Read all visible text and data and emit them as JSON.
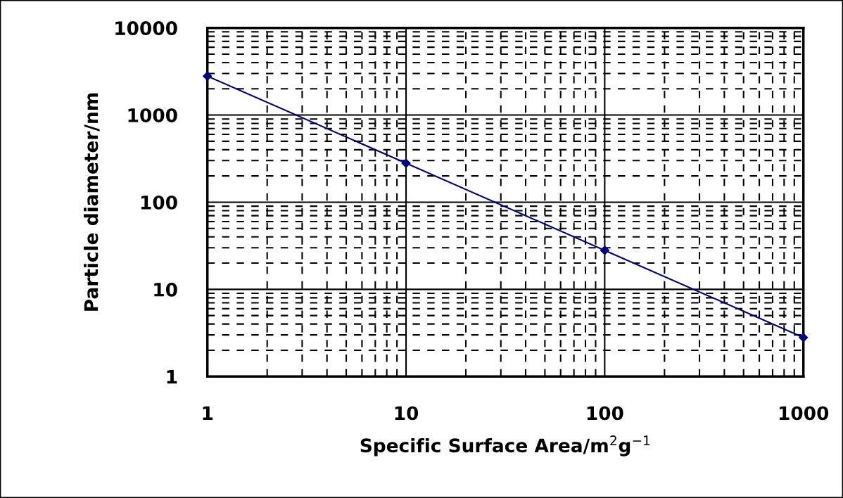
{
  "chart_data": {
    "type": "line",
    "xlabel": "Specific Surface Area/m$^{2}$g$^{−1}$",
    "ylabel": "Particle diameter/nm",
    "x": [
      1,
      10,
      100,
      1000
    ],
    "series": [
      {
        "color": "#000080",
        "values": [
          2800,
          280,
          28,
          2.8
        ]
      }
    ],
    "log": "xy",
    "xlim": [
      1,
      1000
    ],
    "ylim": [
      1,
      10000
    ],
    "xticks": [
      1,
      10,
      100,
      1000
    ],
    "yticks": [
      1,
      10,
      100,
      1000,
      10000
    ],
    "grid": true,
    "marker": "diamond",
    "line_style": "solid"
  }
}
